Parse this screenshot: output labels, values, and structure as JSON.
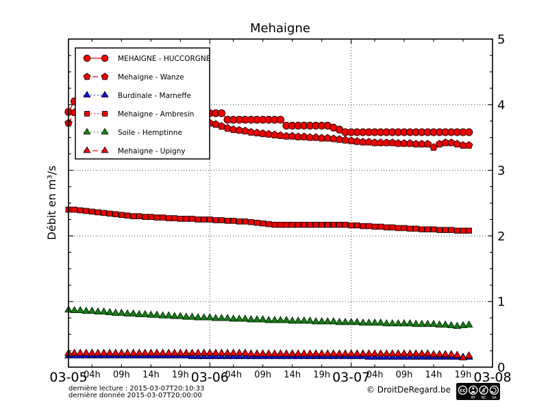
{
  "title": "Mehaigne",
  "footer": {
    "last_read": "dernière lecture : 2015-03-07T20:10:33",
    "last_data": "dernière donnée  2015-03-07T20:00:00",
    "copyright": "© DroitDeRegard.be",
    "cc": {
      "logo": "cc",
      "by": "BY",
      "nc": "NC",
      "sa": "SA",
      "nc_glyph": "$"
    }
  },
  "chart_data": {
    "type": "line",
    "title": "Mehaigne",
    "ylabel": "Débit en m³/s",
    "ylim": [
      0,
      5
    ],
    "y_ticks": [
      0,
      1,
      2,
      3,
      4,
      5
    ],
    "y_minor_step": 0.25,
    "x_days": [
      "03-05",
      "03-06",
      "03-07",
      "03-08"
    ],
    "x_hour_labels": [
      "04h",
      "09h",
      "14h",
      "19h"
    ],
    "x_hour_tick_hours": [
      4,
      9,
      14,
      19
    ],
    "x_hours_span": 72,
    "x_step_hours": 1,
    "x_start": "2015-03-05T00:00",
    "grid": {
      "style": "dotted",
      "h_values": [
        1,
        2,
        3,
        4
      ],
      "v_day_indices": [
        1,
        2
      ]
    },
    "legend_position": "upper-left",
    "series": [
      {
        "name": "MEHAIGNE - HUCCORGNE",
        "color": "#ee0000",
        "edge": "#1a0000",
        "marker": "circle",
        "line": "solid",
        "values": [
          3.89,
          4.05,
          4.16,
          4.08,
          4.0,
          3.94,
          3.88,
          3.83,
          3.79,
          3.75,
          3.72,
          3.69,
          3.66,
          3.63,
          3.61,
          3.59,
          3.57,
          3.55,
          3.53,
          3.52,
          3.51,
          3.5,
          3.49,
          3.72,
          3.87,
          3.87,
          3.87,
          3.77,
          3.77,
          3.77,
          3.77,
          3.77,
          3.77,
          3.77,
          3.77,
          3.77,
          3.77,
          3.68,
          3.68,
          3.68,
          3.68,
          3.68,
          3.68,
          3.68,
          3.68,
          3.65,
          3.62,
          3.58,
          3.58,
          3.58,
          3.58,
          3.58,
          3.58,
          3.58,
          3.58,
          3.58,
          3.58,
          3.58,
          3.58,
          3.58,
          3.58,
          3.58,
          3.58,
          3.58,
          3.58,
          3.58,
          3.58,
          3.58,
          3.58
        ]
      },
      {
        "name": "Mehaigne - Wanze",
        "color": "#ee0000",
        "edge": "#1a0000",
        "marker": "pentagon",
        "line": "dashed",
        "values": [
          3.72,
          3.88,
          3.98,
          3.92,
          3.85,
          3.79,
          3.74,
          3.7,
          3.66,
          3.62,
          3.59,
          3.56,
          3.53,
          3.51,
          3.49,
          3.47,
          3.45,
          3.44,
          3.43,
          3.42,
          3.41,
          3.4,
          3.39,
          3.58,
          3.72,
          3.7,
          3.67,
          3.64,
          3.62,
          3.61,
          3.6,
          3.58,
          3.57,
          3.56,
          3.55,
          3.54,
          3.53,
          3.52,
          3.52,
          3.51,
          3.51,
          3.5,
          3.5,
          3.49,
          3.49,
          3.48,
          3.47,
          3.46,
          3.45,
          3.44,
          3.43,
          3.43,
          3.42,
          3.42,
          3.42,
          3.42,
          3.41,
          3.41,
          3.41,
          3.4,
          3.4,
          3.4,
          3.35,
          3.4,
          3.42,
          3.42,
          3.4,
          3.38,
          3.38
        ]
      },
      {
        "name": "Burdinale - Marneffe",
        "color": "#1212cc",
        "edge": "#000028",
        "marker": "triangle",
        "line": "dotted",
        "values": [
          0.17,
          0.17,
          0.17,
          0.17,
          0.17,
          0.17,
          0.17,
          0.17,
          0.17,
          0.17,
          0.17,
          0.17,
          0.17,
          0.17,
          0.17,
          0.17,
          0.17,
          0.17,
          0.17,
          0.17,
          0.17,
          0.16,
          0.16,
          0.16,
          0.16,
          0.16,
          0.16,
          0.16,
          0.16,
          0.16,
          0.16,
          0.16,
          0.16,
          0.16,
          0.16,
          0.16,
          0.16,
          0.16,
          0.16,
          0.16,
          0.16,
          0.16,
          0.16,
          0.16,
          0.16,
          0.16,
          0.16,
          0.16,
          0.16,
          0.16,
          0.16,
          0.15,
          0.15,
          0.15,
          0.15,
          0.15,
          0.15,
          0.15,
          0.15,
          0.15,
          0.15,
          0.15,
          0.15,
          0.15,
          0.15,
          0.15,
          0.15,
          0.15,
          0.15
        ]
      },
      {
        "name": "Mehaigne - Ambresin",
        "color": "#ee0000",
        "edge": "#1a0000",
        "marker": "square",
        "line": "dotted",
        "values": [
          2.4,
          2.4,
          2.39,
          2.38,
          2.37,
          2.36,
          2.35,
          2.34,
          2.33,
          2.32,
          2.31,
          2.3,
          2.3,
          2.29,
          2.29,
          2.28,
          2.28,
          2.27,
          2.27,
          2.26,
          2.26,
          2.26,
          2.25,
          2.25,
          2.25,
          2.24,
          2.24,
          2.23,
          2.23,
          2.22,
          2.22,
          2.21,
          2.2,
          2.19,
          2.18,
          2.17,
          2.17,
          2.17,
          2.17,
          2.17,
          2.17,
          2.17,
          2.17,
          2.17,
          2.17,
          2.17,
          2.17,
          2.17,
          2.16,
          2.16,
          2.15,
          2.15,
          2.14,
          2.14,
          2.13,
          2.13,
          2.12,
          2.12,
          2.11,
          2.11,
          2.1,
          2.1,
          2.1,
          2.09,
          2.09,
          2.09,
          2.08,
          2.08,
          2.08
        ]
      },
      {
        "name": "Soile - Hemptinne",
        "color": "#1a7a1a",
        "edge": "#002800",
        "marker": "triangle",
        "line": "dotted",
        "values": [
          0.87,
          0.86,
          0.86,
          0.85,
          0.85,
          0.84,
          0.84,
          0.83,
          0.82,
          0.82,
          0.81,
          0.81,
          0.8,
          0.8,
          0.79,
          0.79,
          0.78,
          0.78,
          0.77,
          0.77,
          0.76,
          0.76,
          0.75,
          0.75,
          0.75,
          0.74,
          0.74,
          0.74,
          0.73,
          0.73,
          0.73,
          0.72,
          0.72,
          0.72,
          0.71,
          0.71,
          0.71,
          0.71,
          0.7,
          0.7,
          0.7,
          0.7,
          0.69,
          0.69,
          0.69,
          0.69,
          0.68,
          0.68,
          0.68,
          0.68,
          0.67,
          0.67,
          0.67,
          0.67,
          0.66,
          0.66,
          0.66,
          0.66,
          0.66,
          0.65,
          0.65,
          0.65,
          0.65,
          0.64,
          0.64,
          0.63,
          0.62,
          0.63,
          0.64
        ]
      },
      {
        "name": "Mehaigne - Upigny",
        "color": "#ee0000",
        "edge": "#1a0000",
        "marker": "triangle",
        "line": "dashed",
        "values": [
          0.21,
          0.21,
          0.21,
          0.21,
          0.21,
          0.21,
          0.21,
          0.21,
          0.21,
          0.21,
          0.21,
          0.21,
          0.21,
          0.21,
          0.21,
          0.21,
          0.21,
          0.21,
          0.21,
          0.21,
          0.21,
          0.21,
          0.21,
          0.21,
          0.21,
          0.21,
          0.21,
          0.21,
          0.21,
          0.21,
          0.21,
          0.2,
          0.2,
          0.2,
          0.2,
          0.2,
          0.2,
          0.2,
          0.2,
          0.2,
          0.2,
          0.2,
          0.2,
          0.2,
          0.2,
          0.2,
          0.2,
          0.2,
          0.2,
          0.2,
          0.2,
          0.2,
          0.2,
          0.2,
          0.2,
          0.2,
          0.2,
          0.2,
          0.2,
          0.2,
          0.2,
          0.2,
          0.19,
          0.19,
          0.19,
          0.19,
          0.18,
          0.14,
          0.17
        ]
      }
    ]
  }
}
